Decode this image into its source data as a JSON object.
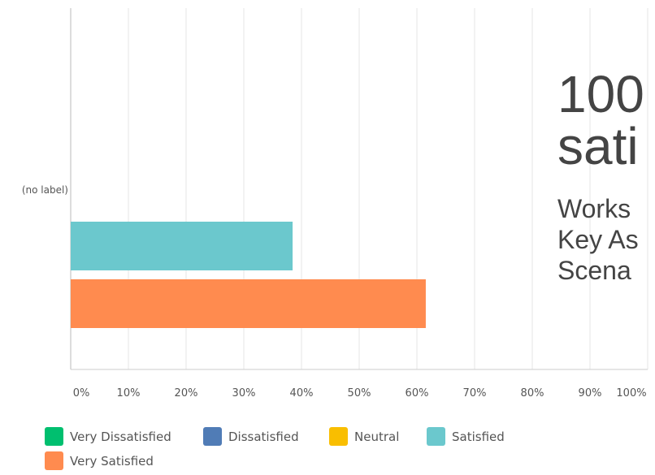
{
  "chart_data": {
    "type": "bar",
    "orientation": "horizontal",
    "categories": [
      "(no label)"
    ],
    "series": [
      {
        "name": "Very Dissatisfied",
        "color": "#00bf6f",
        "values": [
          0
        ]
      },
      {
        "name": "Dissatisfied",
        "color": "#507cb6",
        "values": [
          0
        ]
      },
      {
        "name": "Neutral",
        "color": "#f9be00",
        "values": [
          0
        ]
      },
      {
        "name": "Satisfied",
        "color": "#6bc8cd",
        "values": [
          38.46
        ]
      },
      {
        "name": "Very Satisfied",
        "color": "#ff8b4f",
        "values": [
          61.54
        ]
      }
    ],
    "xlim": [
      0,
      100
    ],
    "xticks": [
      "0%",
      "10%",
      "20%",
      "30%",
      "40%",
      "50%",
      "60%",
      "70%",
      "80%",
      "90%",
      "100%"
    ],
    "grid": true,
    "legend_position": "bottom-left"
  },
  "overlay": {
    "title_lines": [
      "100",
      "sati"
    ],
    "lines": [
      "Works",
      "Key As",
      "Scena"
    ]
  }
}
